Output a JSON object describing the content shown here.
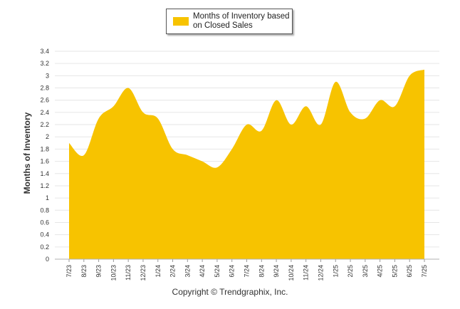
{
  "copyright": "Copyright © Trendgraphix, Inc.",
  "chart_data": {
    "type": "area",
    "title": "",
    "xlabel": "",
    "ylabel": "Months of Inventory",
    "legend": {
      "placement": "top-center"
    },
    "grid": true,
    "ylim": [
      0,
      3.4
    ],
    "yticks": [
      0,
      0.2,
      0.4,
      0.6,
      0.8,
      1,
      1.2,
      1.4,
      1.6,
      1.8,
      2,
      2.2,
      2.4,
      2.6,
      2.8,
      3,
      3.2,
      3.4
    ],
    "categories": [
      "7/23",
      "8/23",
      "9/23",
      "10/23",
      "11/23",
      "12/23",
      "1/24",
      "2/24",
      "3/24",
      "4/24",
      "5/24",
      "6/24",
      "7/24",
      "8/24",
      "9/24",
      "10/24",
      "11/24",
      "12/24",
      "1/25",
      "2/25",
      "3/25",
      "4/25",
      "5/25",
      "6/25",
      "7/25"
    ],
    "series": [
      {
        "name": "Months of Inventory based on Closed Sales",
        "color": "#F7C300",
        "values": [
          1.9,
          1.7,
          2.3,
          2.5,
          2.8,
          2.4,
          2.3,
          1.8,
          1.7,
          1.6,
          1.5,
          1.8,
          2.2,
          2.1,
          2.6,
          2.2,
          2.5,
          2.2,
          2.9,
          2.4,
          2.3,
          2.6,
          2.5,
          3.0,
          3.1
        ]
      }
    ]
  }
}
